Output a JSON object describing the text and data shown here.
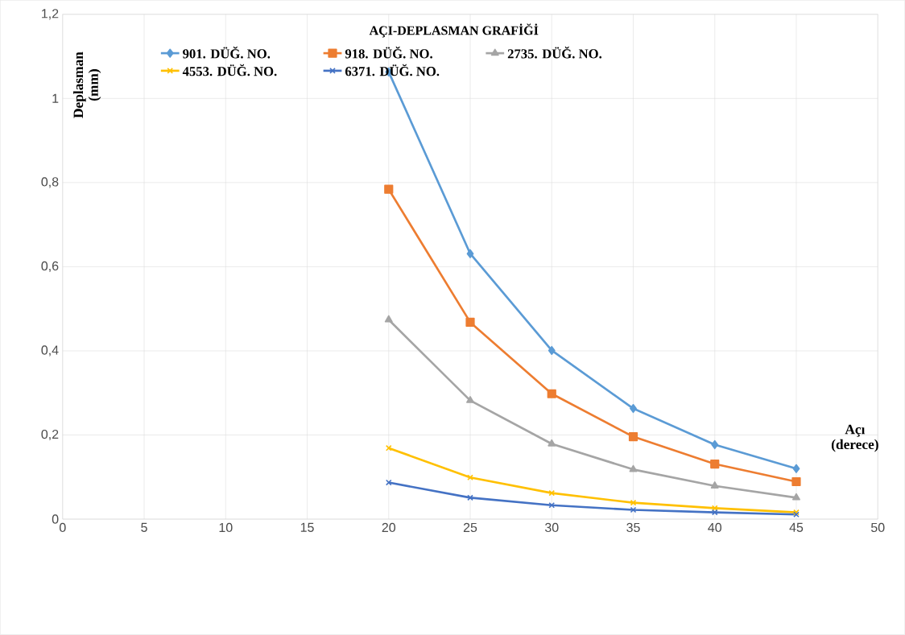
{
  "chart_data": {
    "type": "line",
    "title": "AÇI-DEPLASMAN GRAFİĞİ",
    "xlabel": "Açı (derece)",
    "ylabel": "Deplasman (mm)",
    "x": [
      20,
      25,
      30,
      35,
      40,
      45
    ],
    "series": [
      {
        "name": "901. DÜĞ. NO.",
        "color": "#5b9bd5",
        "marker": "diamond",
        "values": [
          1.063,
          0.631,
          0.401,
          0.263,
          0.177,
          0.12
        ]
      },
      {
        "name": "918. DÜĞ. NO.",
        "color": "#ed7d31",
        "marker": "square",
        "values": [
          0.784,
          0.468,
          0.298,
          0.196,
          0.131,
          0.089
        ]
      },
      {
        "name": "2735. DÜĞ. NO.",
        "color": "#a5a5a5",
        "marker": "triangle",
        "values": [
          0.474,
          0.282,
          0.179,
          0.118,
          0.079,
          0.051
        ]
      },
      {
        "name": "4553. DÜĞ. NO.",
        "color": "#ffc000",
        "marker": "cross",
        "values": [
          0.169,
          0.099,
          0.062,
          0.039,
          0.026,
          0.016
        ]
      },
      {
        "name": "6371. DÜĞ. NO.",
        "color": "#4472c4",
        "marker": "cross",
        "values": [
          0.087,
          0.051,
          0.033,
          0.022,
          0.016,
          0.011
        ]
      }
    ],
    "xlim": [
      0,
      50
    ],
    "xticks": [
      0,
      5,
      10,
      15,
      20,
      25,
      30,
      35,
      40,
      45,
      50
    ],
    "ylim": [
      0,
      1.2
    ],
    "yticks": [
      0,
      {
        "value": 0.2,
        "label": "0,2"
      },
      {
        "value": 0.4,
        "label": "0,4"
      },
      {
        "value": 0.6,
        "label": "0,6"
      },
      {
        "value": 0.8,
        "label": "0,8"
      },
      1,
      {
        "value": 1.2,
        "label": "1,2"
      }
    ],
    "grid": true,
    "legend": "top",
    "line_style": "solid"
  }
}
